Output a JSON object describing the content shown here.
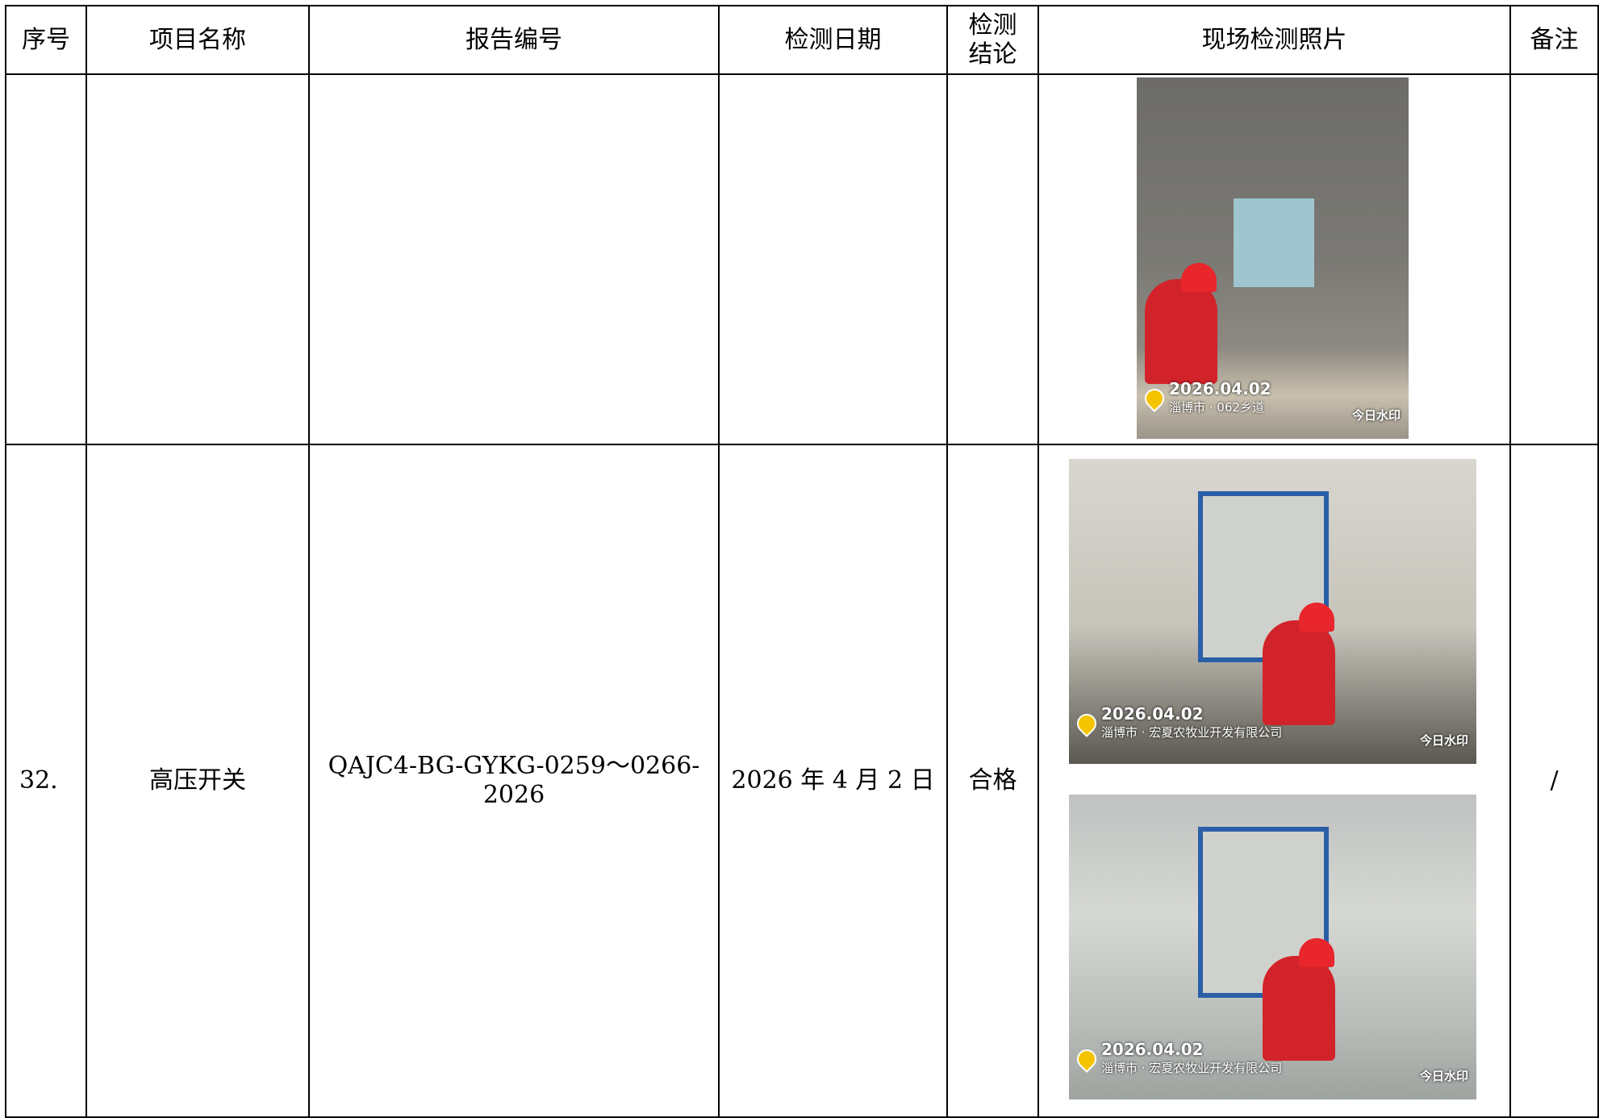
{
  "table": {
    "header": [
      "序号",
      "项目名称",
      "报告编号",
      "检测日期",
      "检测结论",
      "现场检测照片",
      "备注"
    ],
    "rows": [
      {
        "photos": [
          {
            "date": "2026.04.02",
            "location": "淄博市 · 062乡道",
            "brand": "今日水印"
          }
        ]
      },
      {
        "index": "32.",
        "project": "高压开关",
        "report": "QAJC4-BG-GYKG-0259～0266-2026",
        "date": "2026 年 4 月 2 日",
        "conclusion": "合格",
        "remark": "/",
        "photos": [
          {
            "date": "2026.04.02",
            "location": "淄博市 · 宏夏农牧业开发有限公司",
            "brand": "今日水印"
          },
          {
            "date": "2026.04.02",
            "location": "淄博市 · 宏夏农牧业开发有限公司",
            "brand": "今日水印"
          }
        ]
      }
    ]
  }
}
